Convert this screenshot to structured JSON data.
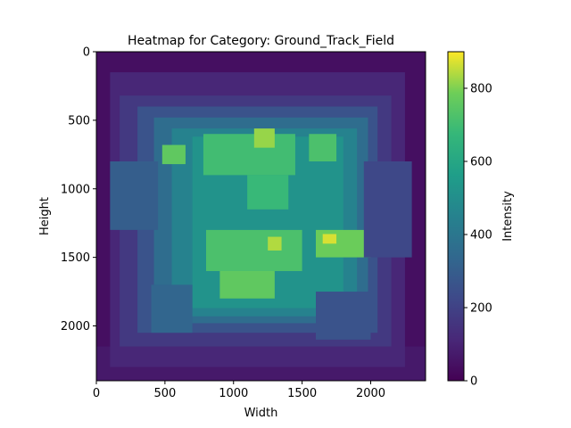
{
  "chart_data": {
    "type": "heatmap",
    "title": "Heatmap for Category: Ground_Track_Field",
    "xlabel": "Width",
    "ylabel": "Height",
    "xlim": [
      0,
      2400
    ],
    "ylim": [
      2400,
      0
    ],
    "x_ticks": [
      0,
      500,
      1000,
      1500,
      2000
    ],
    "y_ticks": [
      0,
      500,
      1000,
      1500,
      2000
    ],
    "colorbar": {
      "label": "Intensity",
      "range": [
        0,
        900
      ],
      "ticks": [
        0,
        200,
        400,
        600,
        800
      ],
      "colormap": "viridis"
    },
    "regions": [
      {
        "x": [
          0,
          2400
        ],
        "y": [
          0,
          2400
        ],
        "value": 40
      },
      {
        "x": [
          0,
          2400
        ],
        "y": [
          2150,
          2400
        ],
        "value": 70
      },
      {
        "x": [
          100,
          2250
        ],
        "y": [
          150,
          2300
        ],
        "value": 110
      },
      {
        "x": [
          170,
          2150
        ],
        "y": [
          320,
          2150
        ],
        "value": 170
      },
      {
        "x": [
          300,
          2050
        ],
        "y": [
          400,
          2050
        ],
        "value": 260
      },
      {
        "x": [
          420,
          1980
        ],
        "y": [
          480,
          1980
        ],
        "value": 360
      },
      {
        "x": [
          550,
          1900
        ],
        "y": [
          560,
          1930
        ],
        "value": 450
      },
      {
        "x": [
          700,
          1800
        ],
        "y": [
          620,
          1870
        ],
        "value": 520
      },
      {
        "x": [
          780,
          1450
        ],
        "y": [
          600,
          900
        ],
        "value": 700
      },
      {
        "x": [
          1550,
          1750
        ],
        "y": [
          600,
          800
        ],
        "value": 720
      },
      {
        "x": [
          480,
          650
        ],
        "y": [
          680,
          820
        ],
        "value": 760
      },
      {
        "x": [
          800,
          1500
        ],
        "y": [
          1300,
          1600
        ],
        "value": 720
      },
      {
        "x": [
          1600,
          2000
        ],
        "y": [
          1300,
          1500
        ],
        "value": 780
      },
      {
        "x": [
          900,
          1300
        ],
        "y": [
          1600,
          1800
        ],
        "value": 760
      },
      {
        "x": [
          1100,
          1400
        ],
        "y": [
          900,
          1150
        ],
        "value": 680
      },
      {
        "x": [
          1250,
          1350
        ],
        "y": [
          1350,
          1450
        ],
        "value": 840
      },
      {
        "x": [
          1150,
          1300
        ],
        "y": [
          560,
          700
        ],
        "value": 820
      },
      {
        "x": [
          1650,
          1750
        ],
        "y": [
          1330,
          1400
        ],
        "value": 870
      },
      {
        "x": [
          100,
          450
        ],
        "y": [
          800,
          1300
        ],
        "value": 300
      },
      {
        "x": [
          1950,
          2300
        ],
        "y": [
          800,
          1500
        ],
        "value": 220
      },
      {
        "x": [
          400,
          700
        ],
        "y": [
          1700,
          2050
        ],
        "value": 330
      },
      {
        "x": [
          1600,
          2000
        ],
        "y": [
          1750,
          2100
        ],
        "value": 260
      }
    ]
  }
}
